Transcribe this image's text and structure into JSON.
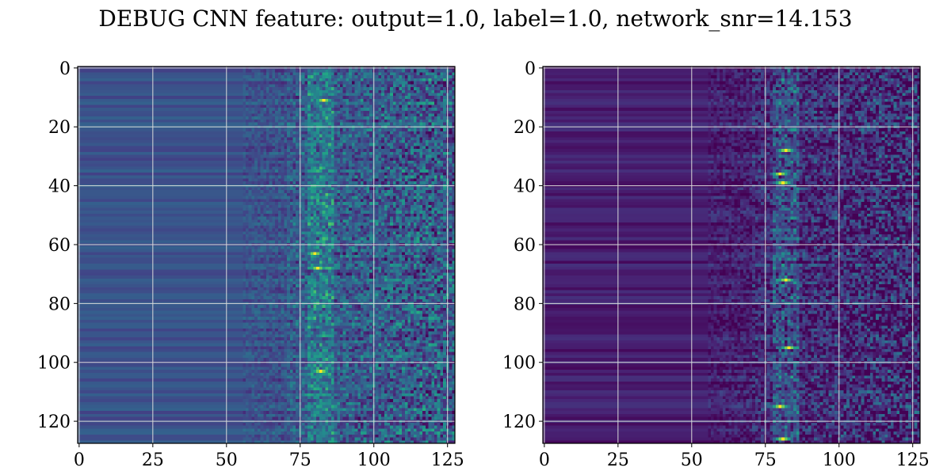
{
  "chart_data": {
    "title": "DEBUG CNN feature: output=1.0, label=1.0, network_snr=14.153",
    "colormap": "viridis",
    "grid": true,
    "panels": [
      {
        "type": "heatmap",
        "rows": 128,
        "cols": 128,
        "xlim": [
          -0.5,
          127.5
        ],
        "ylim": [
          -0.5,
          127.5
        ],
        "y_inverted": true,
        "xticks": [
          0,
          25,
          50,
          75,
          100,
          125
        ],
        "yticks": [
          0,
          20,
          40,
          60,
          80,
          100,
          120
        ],
        "value_range": [
          0,
          1
        ],
        "background_level": 0.25,
        "hotspot_columns": [
          78,
          86
        ],
        "hotspot_rows": [
          63,
          68,
          103,
          11
        ],
        "peak_value": 1.0
      },
      {
        "type": "heatmap",
        "rows": 128,
        "cols": 128,
        "xlim": [
          -0.5,
          127.5
        ],
        "ylim": [
          -0.5,
          127.5
        ],
        "y_inverted": true,
        "xticks": [
          0,
          25,
          50,
          75,
          100,
          125
        ],
        "yticks": [
          0,
          20,
          40,
          60,
          80,
          100,
          120
        ],
        "value_range": [
          0,
          1
        ],
        "background_level": 0.08,
        "hotspot_columns": [
          78,
          86
        ],
        "hotspot_rows": [
          36,
          39,
          72,
          95,
          115,
          126,
          28
        ],
        "peak_value": 1.0
      }
    ]
  }
}
